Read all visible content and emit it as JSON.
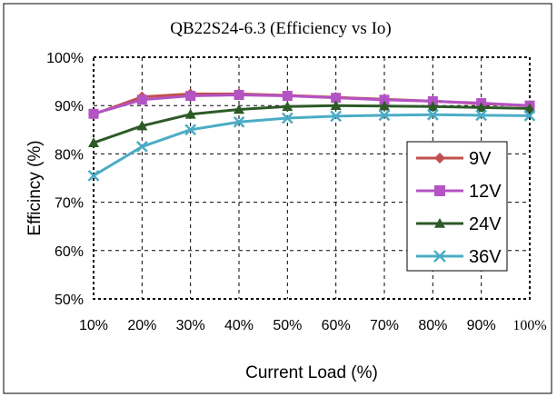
{
  "chart_data": {
    "type": "line",
    "title": "QB22S24-6.3   (Efficiency vs Io)",
    "xlabel": "Current Load (%)",
    "ylabel": "Efficincy (%)",
    "categories": [
      "10%",
      "20%",
      "30%",
      "40%",
      "50%",
      "60%",
      "70%",
      "80%",
      "90%",
      "100%"
    ],
    "y_tick_labels": [
      "50%",
      "60%",
      "70%",
      "80%",
      "90%",
      "100%"
    ],
    "ylim": [
      50,
      100
    ],
    "grid": true,
    "legend_position": "right",
    "series": [
      {
        "name": "9V",
        "color": "#c0504d",
        "marker": "diamond",
        "values": [
          88.2,
          91.8,
          92.4,
          92.4,
          92.1,
          91.7,
          91.3,
          90.9,
          90.4,
          90.0
        ]
      },
      {
        "name": "12V",
        "color": "#b453c4",
        "marker": "square",
        "values": [
          88.3,
          91.2,
          92.0,
          92.2,
          92.0,
          91.6,
          91.2,
          90.9,
          90.5,
          90.0
        ]
      },
      {
        "name": "24V",
        "color": "#2d5a27",
        "marker": "triangle",
        "values": [
          82.3,
          85.8,
          88.2,
          89.2,
          89.8,
          90.0,
          89.9,
          89.8,
          89.6,
          89.4
        ]
      },
      {
        "name": "36V",
        "color": "#4bacc6",
        "marker": "x",
        "values": [
          75.5,
          81.5,
          85.0,
          86.6,
          87.4,
          87.8,
          88.0,
          88.1,
          88.0,
          87.9
        ]
      }
    ]
  }
}
